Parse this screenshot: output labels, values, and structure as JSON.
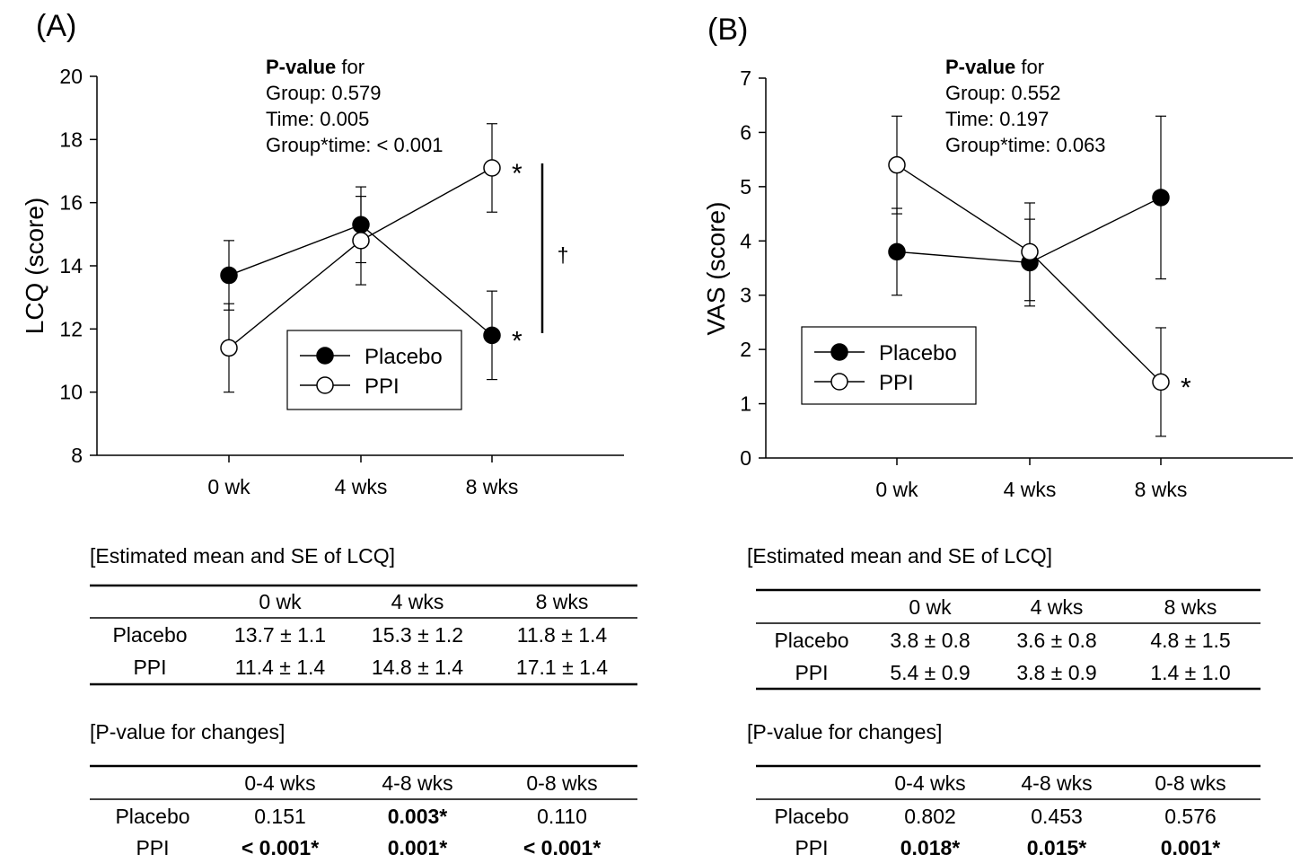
{
  "chart_data": [
    {
      "type": "line",
      "panel_label": "(A)",
      "ylabel": "LCQ (score)",
      "xlabel": "",
      "categories": [
        "0 wk",
        "4 wks",
        "8 wks"
      ],
      "ylim": [
        8,
        20
      ],
      "yticks": [
        "8",
        "10",
        "12",
        "14",
        "16",
        "18",
        "20"
      ],
      "series": [
        {
          "name": "Placebo",
          "marker": "filled",
          "values": [
            13.7,
            15.3,
            11.8
          ],
          "err_low": [
            12.6,
            14.1,
            10.4
          ],
          "err_high": [
            14.8,
            16.5,
            13.2
          ]
        },
        {
          "name": "PPI",
          "marker": "open",
          "values": [
            11.4,
            14.8,
            17.1
          ],
          "err_low": [
            10.0,
            13.4,
            15.7
          ],
          "err_high": [
            12.8,
            16.2,
            18.5
          ]
        }
      ],
      "pvalue_block": {
        "bold": "P-value",
        "rest": " for",
        "lines": [
          "Group: 0.579",
          "Time: 0.005",
          "Group*time: < 0.001"
        ]
      },
      "annotations": {
        "star": "*",
        "dagger": "†"
      },
      "table1": {
        "title": "[Estimated mean and SE of LCQ]",
        "columns": [
          "0 wk",
          "4 wks",
          "8 wks"
        ],
        "rows": [
          {
            "label": "Placebo",
            "cells": [
              "13.7 ± 1.1",
              "15.3 ± 1.2",
              "11.8 ± 1.4"
            ]
          },
          {
            "label": "PPI",
            "cells": [
              "11.4 ± 1.4",
              "14.8 ± 1.4",
              "17.1 ± 1.4"
            ]
          }
        ]
      },
      "table2": {
        "title": "[P-value for changes]",
        "columns": [
          "0-4 wks",
          "4-8 wks",
          "0-8 wks"
        ],
        "rows": [
          {
            "label": "Placebo",
            "cells": [
              "0.151",
              "0.003*",
              "0.110"
            ],
            "bold": [
              false,
              true,
              false
            ]
          },
          {
            "label": "PPI",
            "cells": [
              "< 0.001*",
              "0.001*",
              "< 0.001*"
            ],
            "bold": [
              true,
              true,
              true
            ]
          }
        ]
      }
    },
    {
      "type": "line",
      "panel_label": "(B)",
      "ylabel": "VAS (score)",
      "xlabel": "",
      "categories": [
        "0 wk",
        "4 wks",
        "8 wks"
      ],
      "ylim": [
        0,
        7
      ],
      "yticks": [
        "0",
        "1",
        "2",
        "3",
        "4",
        "5",
        "6",
        "7"
      ],
      "series": [
        {
          "name": "Placebo",
          "marker": "filled",
          "values": [
            3.8,
            3.6,
            4.8
          ],
          "err_low": [
            3.0,
            2.8,
            3.3
          ],
          "err_high": [
            4.6,
            4.4,
            6.3
          ]
        },
        {
          "name": "PPI",
          "marker": "open",
          "values": [
            5.4,
            3.8,
            1.4
          ],
          "err_low": [
            4.5,
            2.9,
            0.4
          ],
          "err_high": [
            6.3,
            4.7,
            2.4
          ]
        }
      ],
      "pvalue_block": {
        "bold": "P-value",
        "rest": " for",
        "lines": [
          "Group: 0.552",
          "Time: 0.197",
          "Group*time: 0.063"
        ]
      },
      "annotations": {
        "star": "*"
      },
      "table1": {
        "title": "[Estimated mean and SE of LCQ]",
        "columns": [
          "0 wk",
          "4 wks",
          "8 wks"
        ],
        "rows": [
          {
            "label": "Placebo",
            "cells": [
              "3.8 ± 0.8",
              "3.6 ± 0.8",
              "4.8 ± 1.5"
            ]
          },
          {
            "label": "PPI",
            "cells": [
              "5.4 ± 0.9",
              "3.8 ± 0.9",
              "1.4 ± 1.0"
            ]
          }
        ]
      },
      "table2": {
        "title": "[P-value for changes]",
        "columns": [
          "0-4 wks",
          "4-8 wks",
          "0-8 wks"
        ],
        "rows": [
          {
            "label": "Placebo",
            "cells": [
              "0.802",
              "0.453",
              "0.576"
            ],
            "bold": [
              false,
              false,
              false
            ]
          },
          {
            "label": "PPI",
            "cells": [
              "0.018*",
              "0.015*",
              "0.001*"
            ],
            "bold": [
              true,
              true,
              true
            ]
          }
        ]
      }
    }
  ]
}
